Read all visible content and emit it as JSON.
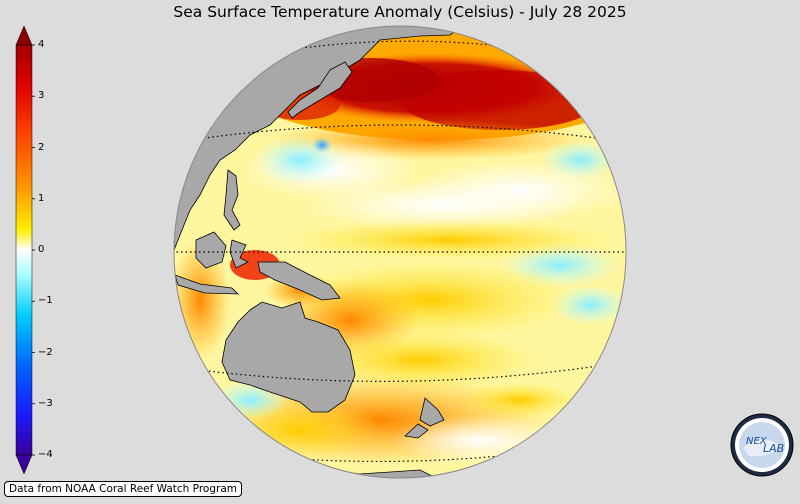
{
  "title": "Sea Surface Temperature Anomaly (Celsius) - July 28 2025",
  "colorbar": {
    "ticks": [
      "4",
      "3",
      "2",
      "1",
      "0",
      "−1",
      "−2",
      "−3",
      "−4"
    ],
    "min": -4,
    "max": 4,
    "extend": "both",
    "colors": [
      "#3a0099",
      "#0044ff",
      "#00aaff",
      "#66ffff",
      "#ffffff",
      "#ffff33",
      "#ffaa00",
      "#ff3300",
      "#a00000"
    ]
  },
  "map": {
    "projection": "orthographic",
    "center": "western Pacific",
    "land_color": "#a8a8a8",
    "graticule": "dotted"
  },
  "credit": "Data from NOAA Coral Reef Watch Program",
  "logo": {
    "text": "NEX LAB",
    "icon": "nexlab-logo-icon"
  }
}
